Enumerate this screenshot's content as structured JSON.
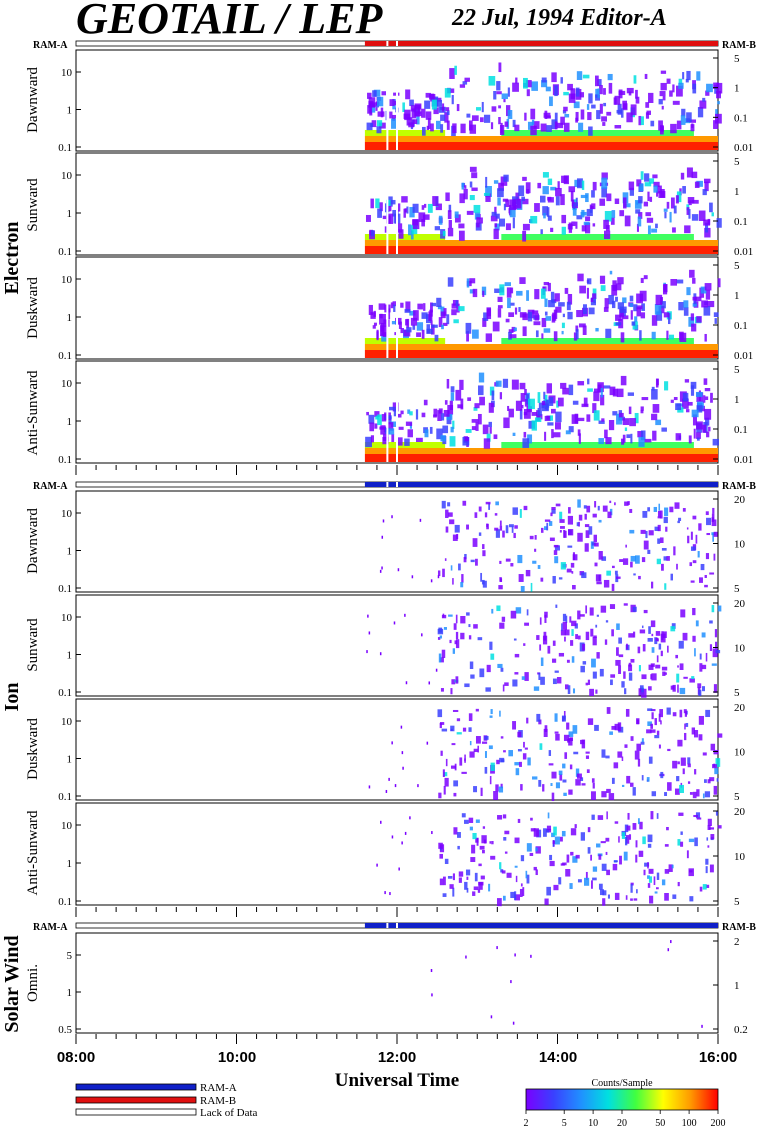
{
  "header": {
    "title": "GEOTAIL / LEP",
    "subtitle": "22 Jul, 1994   Editor-A"
  },
  "groups": {
    "electron": "Electron",
    "ion": "Ion",
    "solar_wind": "Solar Wind"
  },
  "ram_labels": {
    "ram_a": "RAM-A",
    "ram_b": "RAM-B"
  },
  "legend": {
    "ram_a": "RAM-A",
    "ram_b": "RAM-B",
    "lack": "Lack of Data",
    "colors": {
      "ram_a": "#1020c8",
      "ram_b": "#e01010",
      "lack": "#ffffff"
    }
  },
  "colorbar": {
    "title": "Counts/Sample",
    "ticks": [
      "2",
      "5",
      "10",
      "20",
      "50",
      "100",
      "200"
    ],
    "tick_values": [
      2,
      5,
      10,
      20,
      50,
      100,
      200
    ],
    "range": [
      2,
      200
    ],
    "scale": "log",
    "colors": [
      "#7a00ff",
      "#3a40ff",
      "#2090ff",
      "#00e0e0",
      "#40ff40",
      "#ffff00",
      "#ff9900",
      "#ff0000"
    ]
  },
  "chart_data": {
    "type": "heatmap",
    "title": "GEOTAIL / LEP",
    "date": "22 Jul, 1994",
    "xlabel": "Universal Time",
    "x_ticks": [
      "08:00",
      "10:00",
      "12:00",
      "14:00",
      "16:00"
    ],
    "x_tick_hours": [
      8,
      10,
      12,
      14,
      16
    ],
    "xlim_hours": [
      8,
      16
    ],
    "data_start_hour": 11.6,
    "ram_bars": [
      {
        "group": "Electron",
        "color": "red",
        "segments_hours": [
          [
            11.6,
            16
          ]
        ],
        "gaps_hours": [
          11.88,
          12.0
        ]
      },
      {
        "group": "Ion",
        "color": "blue",
        "segments_hours": [
          [
            11.6,
            16
          ]
        ],
        "gaps_hours": [
          11.88,
          12.0
        ]
      },
      {
        "group": "Solar Wind",
        "color": "blue",
        "segments_hours": [
          [
            11.6,
            16
          ]
        ],
        "gaps_hours": [
          11.88,
          12.0
        ]
      }
    ],
    "panels": [
      {
        "group": "Electron",
        "label": "Dawnward",
        "left_ticks": [
          "10",
          "1",
          "0.1"
        ],
        "right_ticks": [
          "5",
          "1",
          "0.1",
          "0.01"
        ]
      },
      {
        "group": "Electron",
        "label": "Sunward",
        "left_ticks": [
          "10",
          "1",
          "0.1"
        ],
        "right_ticks": [
          "5",
          "1",
          "0.1",
          "0.01"
        ]
      },
      {
        "group": "Electron",
        "label": "Duskward",
        "left_ticks": [
          "10",
          "1",
          "0.1"
        ],
        "right_ticks": [
          "5",
          "1",
          "0.1",
          "0.01"
        ]
      },
      {
        "group": "Electron",
        "label": "Anti-Sunward",
        "left_ticks": [
          "10",
          "1",
          "0.1"
        ],
        "right_ticks": [
          "5",
          "1",
          "0.1",
          "0.01"
        ]
      },
      {
        "group": "Ion",
        "label": "Dawnward",
        "left_ticks": [
          "10",
          "1",
          "0.1"
        ],
        "right_ticks": [
          "20",
          "10",
          "5"
        ]
      },
      {
        "group": "Ion",
        "label": "Sunward",
        "left_ticks": [
          "10",
          "1",
          "0.1"
        ],
        "right_ticks": [
          "20",
          "10",
          "5"
        ]
      },
      {
        "group": "Ion",
        "label": "Duskward",
        "left_ticks": [
          "10",
          "1",
          "0.1"
        ],
        "right_ticks": [
          "20",
          "10",
          "5"
        ]
      },
      {
        "group": "Ion",
        "label": "Anti-Sunward",
        "left_ticks": [
          "10",
          "1",
          "0.1"
        ],
        "right_ticks": [
          "20",
          "10",
          "5"
        ]
      },
      {
        "group": "Solar Wind",
        "label": "Omni.",
        "left_ticks": [
          "5",
          "1",
          "0.5"
        ],
        "right_ticks": [
          "2",
          "1",
          "0.2"
        ]
      }
    ]
  }
}
